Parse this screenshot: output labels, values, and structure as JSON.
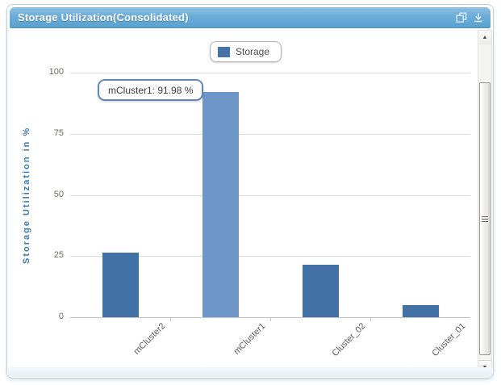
{
  "panel": {
    "title": "Storage Utilization(Consolidated)",
    "header_icons": [
      {
        "name": "popout-icon"
      },
      {
        "name": "download-icon"
      }
    ]
  },
  "legend": {
    "label": "Storage"
  },
  "tooltip": {
    "text": "mCluster1: 91.98 %"
  },
  "colors": {
    "bar": "#4271a6",
    "bar_highlight": "#6e96c8",
    "legend_swatch": "#4473a8",
    "axis_title": "#3d79ab",
    "header_accent": "#5aa2d0"
  },
  "chart_data": {
    "type": "bar",
    "title": "Storage Utilization(Consolidated)",
    "categories": [
      "mCluster2",
      "mCluster1",
      "Cluster_02",
      "Cluster_01"
    ],
    "series": [
      {
        "name": "Storage",
        "values": [
          26.3,
          91.98,
          21.5,
          5.0
        ]
      }
    ],
    "highlighted_index": 1,
    "highlighted_label": "mCluster1: 91.98 %",
    "xlabel": "",
    "ylabel": "Storage Utilization in %",
    "ylim": [
      0,
      100
    ],
    "yticks": [
      0,
      25,
      50,
      75,
      100
    ],
    "grid": true,
    "legend_position": "top-center"
  }
}
